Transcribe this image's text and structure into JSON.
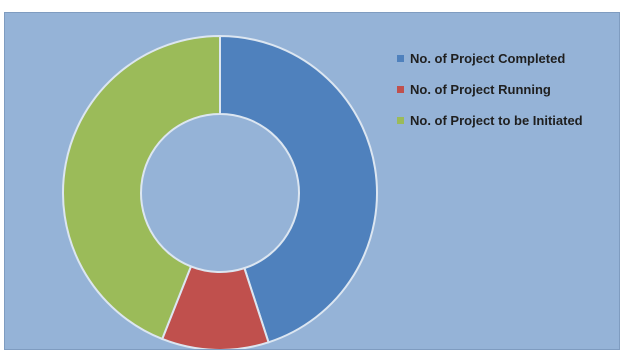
{
  "chart_data": {
    "type": "pie",
    "variant": "donut",
    "title": "",
    "series": [
      {
        "values": [
          45,
          11,
          44
        ]
      }
    ],
    "categories": [
      "No. of Project Completed",
      "No. of Project Running",
      "No. of Project to be Initiated"
    ],
    "colors": [
      "#4f81bd",
      "#c0504d",
      "#9bbb59"
    ],
    "background_color": "#95b3d7",
    "slice_border_color": "#dce6f1",
    "legend_position": "right",
    "start_angle": "top",
    "direction": "clockwise"
  }
}
